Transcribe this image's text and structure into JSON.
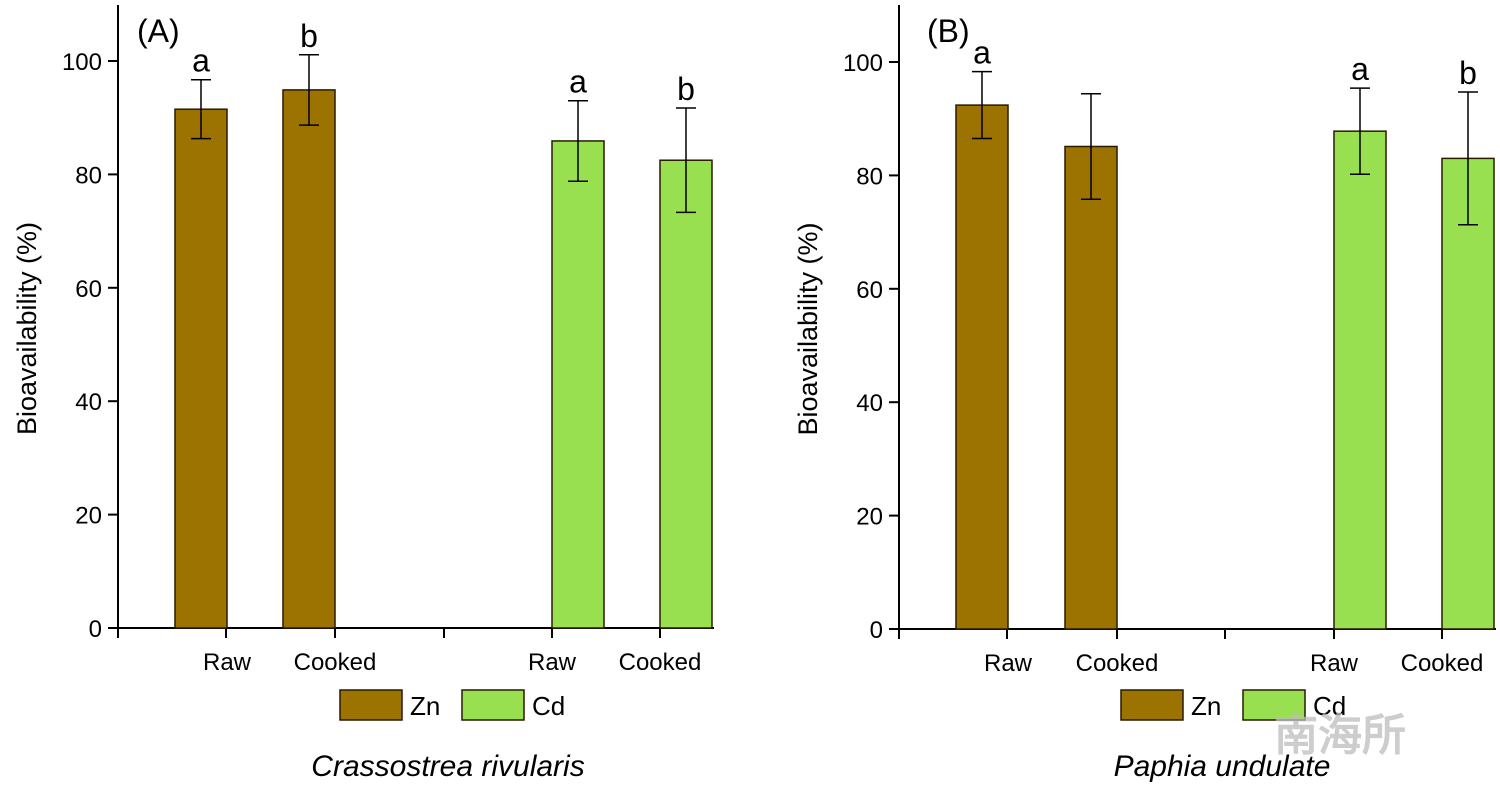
{
  "chart_data": [
    {
      "type": "bar",
      "panel_label": "(A)",
      "title": "",
      "xlabel": "Crassostrea rivularis",
      "ylabel": "Bioavailability (%)",
      "ylim": [
        0,
        110
      ],
      "yticks": [
        0,
        20,
        40,
        60,
        80,
        100
      ],
      "categories": [
        "Raw",
        "Cooked",
        "Raw",
        "Cooked"
      ],
      "legend": {
        "placement": "bottom",
        "entries": [
          "Zn",
          "Cd"
        ]
      },
      "series": [
        {
          "name": "Zn",
          "color": "#9C7300",
          "values": [
            91.5,
            94.9,
            null,
            null
          ],
          "errors": [
            5.2,
            6.2,
            null,
            null
          ],
          "labels": [
            "a",
            "b",
            null,
            null
          ]
        },
        {
          "name": "Cd",
          "color": "#99E050",
          "values": [
            null,
            null,
            85.9,
            82.5
          ],
          "errors": [
            null,
            null,
            7.1,
            9.2
          ],
          "labels": [
            null,
            null,
            "a",
            "b"
          ]
        }
      ]
    },
    {
      "type": "bar",
      "panel_label": "(B)",
      "title": "",
      "xlabel": "Paphia undulate",
      "ylabel": "Bioavailability (%)",
      "ylim": [
        0,
        110
      ],
      "yticks": [
        0,
        20,
        40,
        60,
        80,
        100
      ],
      "categories": [
        "Raw",
        "Cooked",
        "Raw",
        "Cooked"
      ],
      "legend": {
        "placement": "bottom",
        "entries": [
          "Zn",
          "Cd"
        ]
      },
      "series": [
        {
          "name": "Zn",
          "color": "#9C7300",
          "values": [
            92.4,
            85.1,
            null,
            null
          ],
          "errors": [
            5.9,
            9.3,
            null,
            null
          ],
          "labels": [
            "a",
            null,
            null,
            null
          ]
        },
        {
          "name": "Cd",
          "color": "#99E050",
          "values": [
            null,
            null,
            87.8,
            83.0
          ],
          "errors": [
            null,
            null,
            7.6,
            11.7
          ],
          "labels": [
            null,
            null,
            "a",
            "b"
          ]
        }
      ]
    }
  ],
  "watermark": "南海所"
}
